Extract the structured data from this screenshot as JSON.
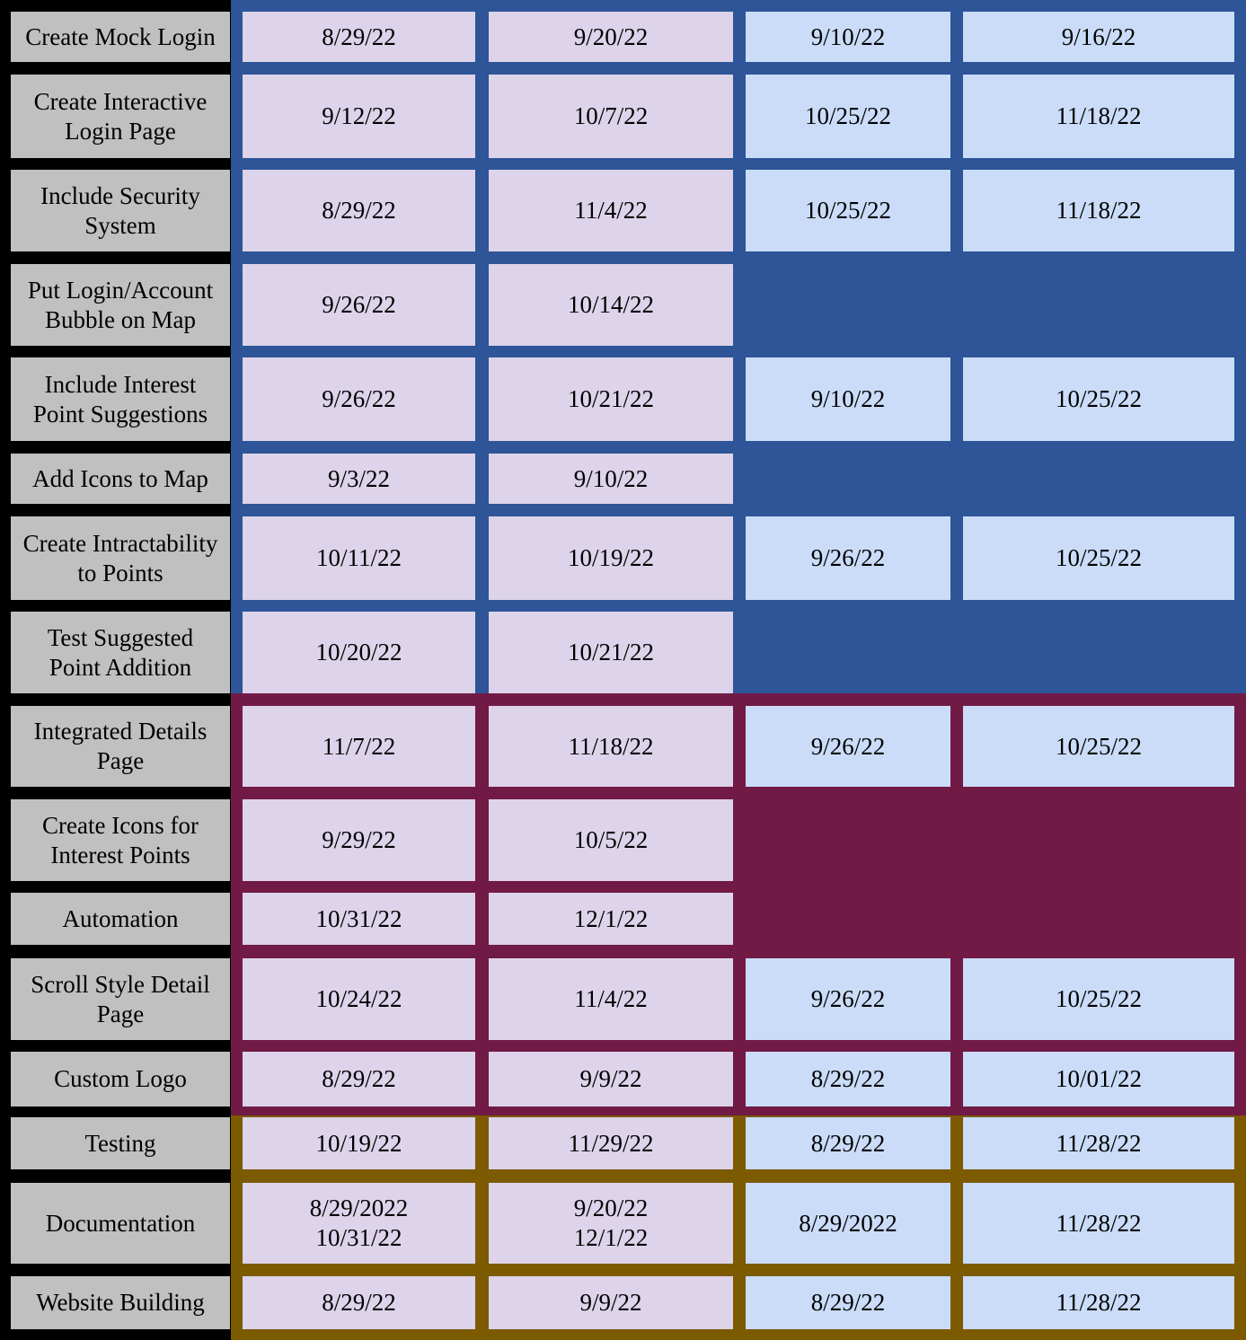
{
  "colors": {
    "background": "#000000",
    "task_cell": "#c0c0c0",
    "planned_cell": "#ddd3ea",
    "actual_cell": "#cadcf8",
    "group_blue": "#2d5597",
    "group_maroon": "#711a46",
    "group_gold": "#7c5a00"
  },
  "rows": [
    {
      "task": "Create Mock Login",
      "group": "blue",
      "cells": [
        "8/29/22",
        "9/20/22",
        "9/10/22",
        "9/16/22"
      ]
    },
    {
      "task": "Create Interactive\nLogin Page",
      "group": "blue",
      "cells": [
        "9/12/22",
        "10/7/22",
        "10/25/22",
        "11/18/22"
      ]
    },
    {
      "task": "Include Security\nSystem",
      "group": "blue",
      "cells": [
        "8/29/22",
        "11/4/22",
        "10/25/22",
        "11/18/22"
      ]
    },
    {
      "task": "Put Login/Account\nBubble on Map",
      "group": "blue",
      "cells": [
        "9/26/22",
        "10/14/22",
        null,
        null
      ]
    },
    {
      "task": "Include Interest\nPoint Suggestions",
      "group": "blue",
      "cells": [
        "9/26/22",
        "10/21/22",
        "9/10/22",
        "10/25/22"
      ]
    },
    {
      "task": "Add Icons to Map",
      "group": "blue",
      "cells": [
        "9/3/22",
        "9/10/22",
        null,
        null
      ]
    },
    {
      "task": "Create Intractability\nto Points",
      "group": "blue",
      "cells": [
        "10/11/22",
        "10/19/22",
        "9/26/22",
        "10/25/22"
      ]
    },
    {
      "task": "Test Suggested\nPoint Addition",
      "group": "blue",
      "cells": [
        "10/20/22",
        "10/21/22",
        null,
        null
      ]
    },
    {
      "task": "Integrated Details\nPage",
      "group": "maroon",
      "cells": [
        "11/7/22",
        "11/18/22",
        "9/26/22",
        "10/25/22"
      ]
    },
    {
      "task": "Create Icons for\nInterest Points",
      "group": "maroon",
      "cells": [
        "9/29/22",
        "10/5/22",
        null,
        null
      ]
    },
    {
      "task": "Automation",
      "group": "maroon",
      "cells": [
        "10/31/22",
        "12/1/22",
        null,
        null
      ]
    },
    {
      "task": "Scroll Style Detail\nPage",
      "group": "maroon",
      "cells": [
        "10/24/22",
        "11/4/22",
        "9/26/22",
        "10/25/22"
      ]
    },
    {
      "task": "Custom Logo",
      "group": "maroon",
      "cells": [
        "8/29/22",
        "9/9/22",
        "8/29/22",
        "10/01/22"
      ]
    },
    {
      "task": "Testing",
      "group": "gold",
      "cells": [
        "10/19/22",
        "11/29/22",
        "8/29/22",
        "11/28/22"
      ]
    },
    {
      "task": "Documentation",
      "group": "gold",
      "cells": [
        "8/29/2022\n10/31/22",
        "9/20/22\n12/1/22",
        "8/29/2022",
        "11/28/22"
      ]
    },
    {
      "task": "Website Building",
      "group": "gold",
      "cells": [
        "8/29/22",
        "9/9/22",
        "8/29/22",
        "11/28/22"
      ]
    }
  ]
}
